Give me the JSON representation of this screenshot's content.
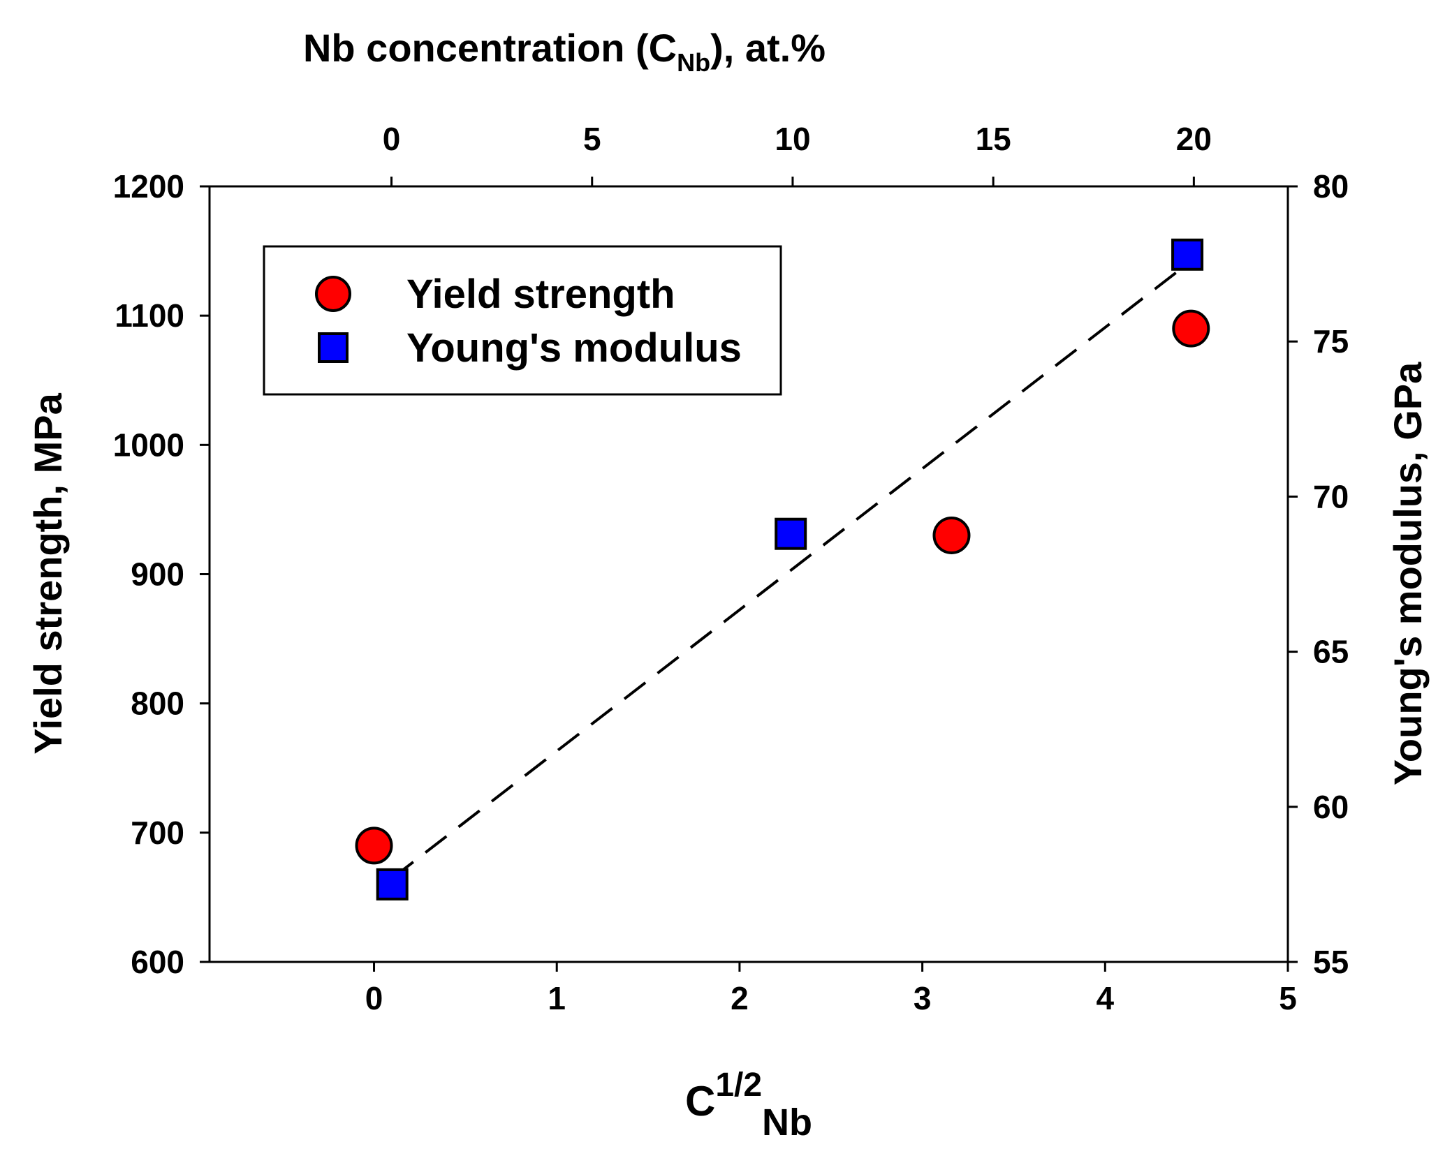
{
  "chart_data": {
    "type": "scatter",
    "top_axis": {
      "title_main": "Nb concentration (C",
      "title_sub": "Nb",
      "title_end": "), at.%",
      "ticks": [
        "0",
        "5",
        "10",
        "15",
        "20"
      ],
      "tick_values": [
        0,
        5,
        10,
        15,
        20
      ]
    },
    "x_axis": {
      "title_main": "C",
      "title_sup": "1/2",
      "title_sub": "Nb",
      "range": [
        -0.9,
        5
      ],
      "ticks": [
        "0",
        "1",
        "2",
        "3",
        "4",
        "5"
      ],
      "tick_values": [
        0,
        1,
        2,
        3,
        4,
        5
      ]
    },
    "y_left": {
      "title": "Yield strength, MPa",
      "range": [
        600,
        1200
      ],
      "ticks": [
        "600",
        "700",
        "800",
        "900",
        "1000",
        "1100",
        "1200"
      ],
      "tick_values": [
        600,
        700,
        800,
        900,
        1000,
        1100,
        1200
      ]
    },
    "y_right": {
      "title": "Young's modulus, GPa",
      "range": [
        55,
        80
      ],
      "ticks": [
        "55",
        "60",
        "65",
        "70",
        "75",
        "80"
      ],
      "tick_values": [
        55,
        60,
        65,
        70,
        75,
        80
      ]
    },
    "series": [
      {
        "name": "Yield strength",
        "axis": "left",
        "marker": "circle",
        "color": "#ff0000",
        "x": [
          0,
          3.16,
          4.47
        ],
        "y": [
          690,
          930,
          1090
        ]
      },
      {
        "name": "Young's modulus",
        "axis": "right",
        "marker": "square",
        "color": "#0000ff",
        "x": [
          0.1,
          2.28,
          4.45
        ],
        "y": [
          57.5,
          68.8,
          77.8
        ]
      }
    ],
    "fit_line": {
      "style": "dashed",
      "color": "#000000",
      "axis": "right",
      "x": [
        0.1,
        4.45
      ],
      "y": [
        57.7,
        77.5
      ]
    },
    "legend": {
      "position": "top-left",
      "entries": [
        "Yield strength",
        "Young's modulus"
      ]
    }
  }
}
